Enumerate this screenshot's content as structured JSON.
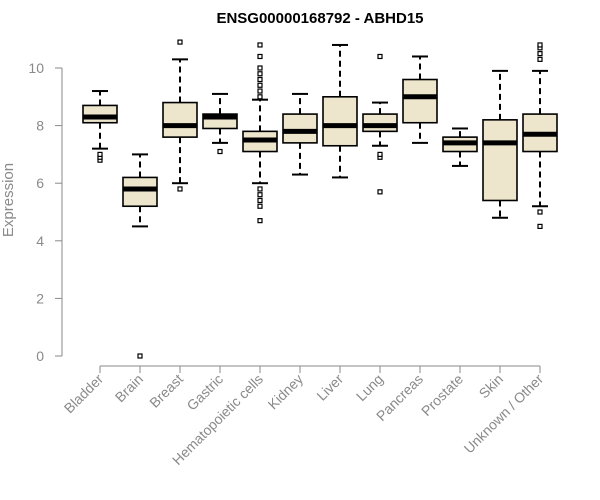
{
  "chart_data": {
    "type": "box",
    "title": "ENSG00000168792 - ABHD15",
    "xlabel": "",
    "ylabel": "Expression",
    "ylim": [
      0,
      10.8
    ],
    "yticks": [
      "0",
      "2",
      "4",
      "6",
      "8",
      "10"
    ],
    "ytick_values": [
      0,
      2,
      4,
      6,
      8,
      10
    ],
    "grid": false,
    "colors": {
      "box_fill": "#ede6cc",
      "box_stroke": "#000000",
      "axis": "#8a8a8a"
    },
    "categories": [
      "Bladder",
      "Brain",
      "Breast",
      "Gastric",
      "Hematopoietic cells",
      "Kidney",
      "Liver",
      "Lung",
      "Pancreas",
      "Prostate",
      "Skin",
      "Unknown / Other"
    ],
    "boxes": [
      {
        "name": "Bladder",
        "whisker_low": 7.2,
        "q1": 8.1,
        "median": 8.3,
        "q3": 8.7,
        "whisker_high": 9.2,
        "outliers": [
          6.8,
          6.9,
          7.0
        ]
      },
      {
        "name": "Brain",
        "whisker_low": 4.5,
        "q1": 5.2,
        "median": 5.8,
        "q3": 6.2,
        "whisker_high": 7.0,
        "outliers": [
          0.0
        ]
      },
      {
        "name": "Breast",
        "whisker_low": 6.0,
        "q1": 7.6,
        "median": 8.0,
        "q3": 8.8,
        "whisker_high": 10.3,
        "outliers": [
          5.8,
          10.9
        ]
      },
      {
        "name": "Gastric",
        "whisker_low": 7.4,
        "q1": 7.9,
        "median": 8.3,
        "q3": 8.4,
        "whisker_high": 9.1,
        "outliers": [
          7.1
        ]
      },
      {
        "name": "Hematopoietic cells",
        "whisker_low": 6.0,
        "q1": 7.1,
        "median": 7.5,
        "q3": 7.8,
        "whisker_high": 8.9,
        "outliers": [
          4.7,
          5.2,
          5.4,
          5.6,
          5.8,
          9.0,
          9.2,
          9.4,
          9.6,
          9.8,
          10.0,
          10.4,
          10.8
        ]
      },
      {
        "name": "Kidney",
        "whisker_low": 6.3,
        "q1": 7.4,
        "median": 7.8,
        "q3": 8.4,
        "whisker_high": 9.1,
        "outliers": []
      },
      {
        "name": "Liver",
        "whisker_low": 6.2,
        "q1": 7.3,
        "median": 8.0,
        "q3": 9.0,
        "whisker_high": 10.8,
        "outliers": []
      },
      {
        "name": "Lung",
        "whisker_low": 7.3,
        "q1": 7.8,
        "median": 8.0,
        "q3": 8.4,
        "whisker_high": 8.8,
        "outliers": [
          5.7,
          6.9,
          7.0,
          10.4
        ]
      },
      {
        "name": "Pancreas",
        "whisker_low": 7.4,
        "q1": 8.1,
        "median": 9.0,
        "q3": 9.6,
        "whisker_high": 10.4,
        "outliers": []
      },
      {
        "name": "Prostate",
        "whisker_low": 6.6,
        "q1": 7.1,
        "median": 7.4,
        "q3": 7.6,
        "whisker_high": 7.9,
        "outliers": []
      },
      {
        "name": "Skin",
        "whisker_low": 4.8,
        "q1": 5.4,
        "median": 7.4,
        "q3": 8.2,
        "whisker_high": 9.9,
        "outliers": []
      },
      {
        "name": "Unknown / Other",
        "whisker_low": 5.2,
        "q1": 7.1,
        "median": 7.7,
        "q3": 8.4,
        "whisker_high": 9.9,
        "outliers": [
          4.5,
          5.0,
          10.3,
          10.5,
          10.7,
          10.8
        ]
      }
    ]
  }
}
